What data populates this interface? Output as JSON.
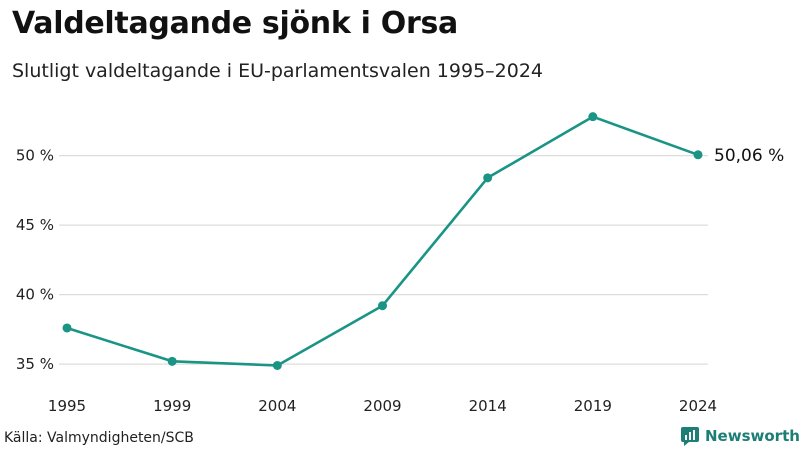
{
  "title": "Valdeltagande sjönk i Orsa",
  "subtitle": "Slutligt valdeltagande i EU-parlamentsvalen 1995–2024",
  "source": "Källa: Valmyndigheten/SCB",
  "brand": "Newsworthy",
  "colors": {
    "line": "#1a9485",
    "grid": "#dddddd",
    "brand": "#1c7e74"
  },
  "chart_data": {
    "type": "line",
    "title": "Valdeltagande sjönk i Orsa",
    "subtitle": "Slutligt valdeltagande i EU-parlamentsvalen 1995–2024",
    "xlabel": "",
    "ylabel": "",
    "categories": [
      "1995",
      "1999",
      "2004",
      "2009",
      "2014",
      "2019",
      "2024"
    ],
    "series": [
      {
        "name": "Valdeltagande",
        "values": [
          37.6,
          35.2,
          34.9,
          39.2,
          48.4,
          52.8,
          50.06
        ]
      }
    ],
    "ylim": [
      34,
      54
    ],
    "yticks": [
      35,
      40,
      45,
      50
    ],
    "ytick_labels": [
      "35 %",
      "40 %",
      "45 %",
      "50 %"
    ],
    "end_label": "50,06 %",
    "grid": true,
    "legend": "none"
  }
}
